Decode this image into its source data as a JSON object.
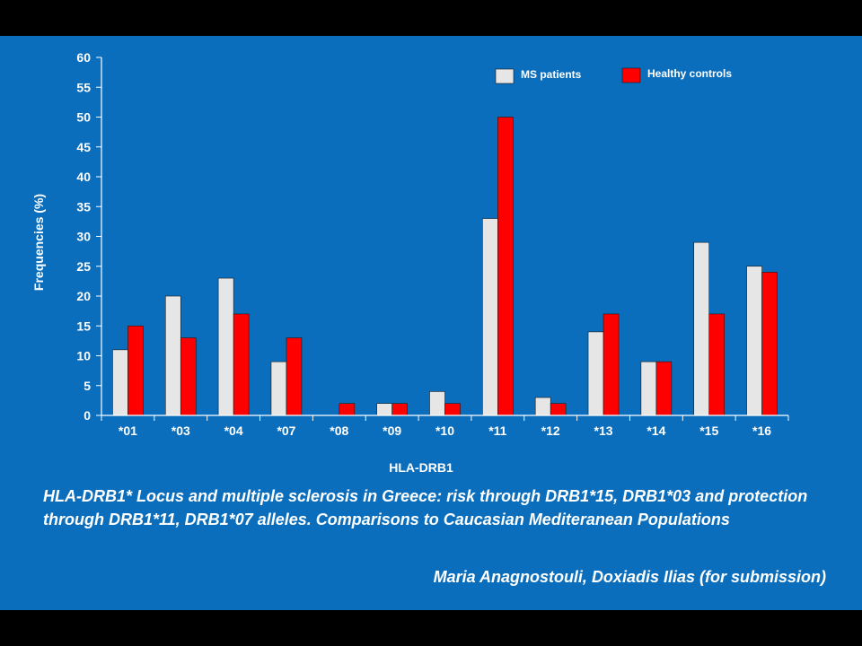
{
  "chart_data": {
    "type": "bar",
    "categories": [
      "*01",
      "*03",
      "*04",
      "*07",
      "*08",
      "*09",
      "*10",
      "*11",
      "*12",
      "*13",
      "*14",
      "*15",
      "*16"
    ],
    "series": [
      {
        "name": "MS patients",
        "color": "#e6e6e6",
        "values": [
          11,
          20,
          23,
          9,
          0,
          2,
          4,
          33,
          3,
          14,
          9,
          29,
          25
        ]
      },
      {
        "name": "Healthy controls",
        "color": "#ff0000",
        "values": [
          15,
          13,
          17,
          13,
          2,
          2,
          2,
          50,
          2,
          17,
          9,
          17,
          24
        ]
      }
    ],
    "title": "",
    "xlabel": "HLA-DRB1",
    "ylabel": "Frequencies (%)",
    "ylim": [
      0,
      60
    ],
    "yticks": [
      0,
      5,
      10,
      15,
      20,
      25,
      30,
      35,
      40,
      45,
      50,
      55,
      60
    ],
    "grid": false,
    "legend": "top-right"
  },
  "caption": {
    "title": "HLA-DRB1* Locus and multiple sclerosis in Greece: risk through DRB1*15, DRB1*03 and protection through DRB1*11, DRB1*07 alleles. Comparisons to Caucasian Mediteranean Populations",
    "authors": "Maria Anagnostouli, Doxiadis Ilias (for submission)"
  },
  "colors": {
    "background": "#0a6ebd",
    "frame": "#000000",
    "text": "#ffffff"
  }
}
